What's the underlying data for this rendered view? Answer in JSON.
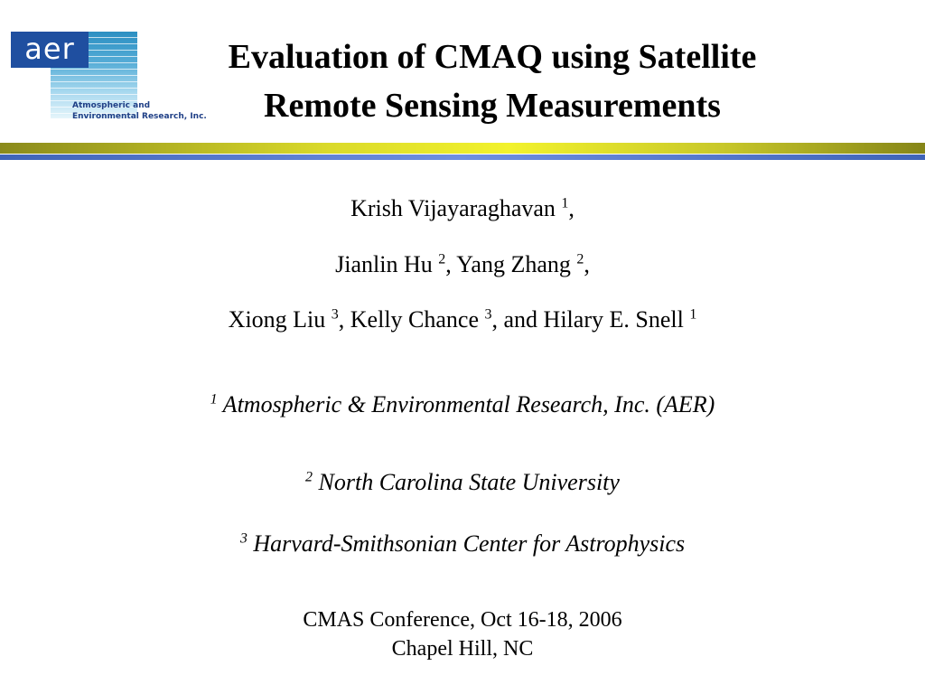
{
  "logo": {
    "mark": "aer",
    "line1": "Atmospheric and",
    "line2": "Environmental Research, Inc."
  },
  "title": {
    "line1": "Evaluation of CMAQ using Satellite",
    "line2": "Remote Sensing Measurements"
  },
  "authors": {
    "line1": {
      "a1": "Krish Vijayaraghavan ",
      "s1": "1",
      "end": ","
    },
    "line2": {
      "a1": "Jianlin Hu ",
      "s1": "2",
      "a2": ", Yang Zhang ",
      "s2": "2",
      "end": ","
    },
    "line3": {
      "a1": "Xiong Liu ",
      "s1": "3",
      "a2": ", Kelly Chance ",
      "s2": "3",
      "a3": ", and Hilary E. Snell ",
      "s3": "1"
    }
  },
  "affiliations": [
    {
      "num": "1",
      "text": " Atmospheric & Environmental Research, Inc. (AER)"
    },
    {
      "num": "2",
      "text": " North Carolina State University"
    },
    {
      "num": "3",
      "text": " Harvard-Smithsonian Center for Astrophysics"
    }
  ],
  "conference": {
    "line1": "CMAS Conference, Oct 16-18, 2006",
    "line2": "Chapel Hill, NC"
  }
}
